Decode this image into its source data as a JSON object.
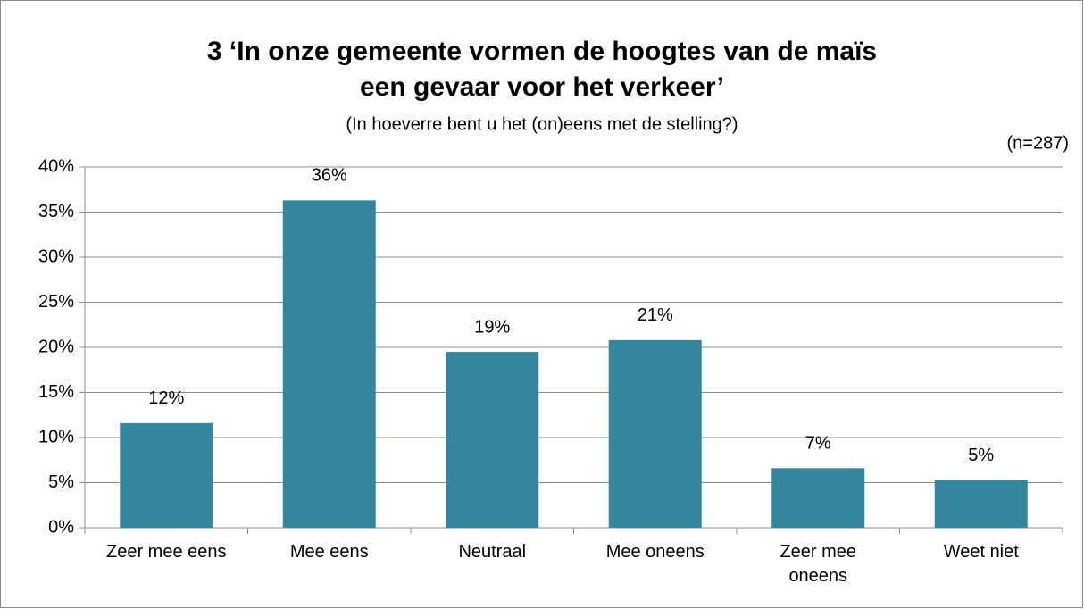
{
  "chart_data": {
    "type": "bar",
    "title": "3 ‘In onze gemeente vormen de hoogtes van de maïs een gevaar voor het verkeer’",
    "subtitle": "(In hoeverre bent u het (on)eens met de stelling?)",
    "note": "(n=287)",
    "categories": [
      "Zeer mee eens",
      "Mee eens",
      "Neutraal",
      "Mee oneens",
      "Zeer mee oneens",
      "Weet niet"
    ],
    "values": [
      11.6,
      36.3,
      19.5,
      20.8,
      6.6,
      5.3
    ],
    "value_labels": [
      "12%",
      "36%",
      "19%",
      "21%",
      "7%",
      "5%"
    ],
    "color": "#33869e",
    "ylim": [
      0,
      40
    ],
    "yticks": [
      {
        "value": 0,
        "label": "0%"
      },
      {
        "value": 5,
        "label": "5%"
      },
      {
        "value": 10,
        "label": "10%"
      },
      {
        "value": 15,
        "label": "15%"
      },
      {
        "value": 20,
        "label": "20%"
      },
      {
        "value": 25,
        "label": "25%"
      },
      {
        "value": 30,
        "label": "30%"
      },
      {
        "value": 35,
        "label": "35%"
      },
      {
        "value": 40,
        "label": "40%"
      }
    ],
    "grid": true
  }
}
